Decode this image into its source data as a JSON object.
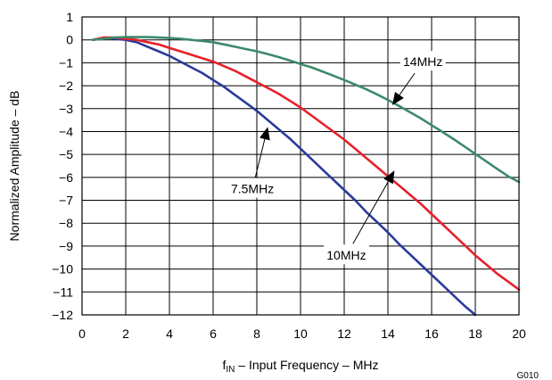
{
  "chart_data": {
    "type": "line",
    "xlabel_main": "f",
    "xlabel_sub": "IN",
    "xlabel_rest": " – Input Frequency – MHz",
    "ylabel": "Normalized Amplitude – dB",
    "xlim": [
      0,
      20
    ],
    "ylim": [
      -12,
      1
    ],
    "x_ticks": [
      0,
      2,
      4,
      6,
      8,
      10,
      12,
      14,
      16,
      18,
      20
    ],
    "y_ticks": [
      1,
      0,
      -1,
      -2,
      -3,
      -4,
      -5,
      -6,
      -7,
      -8,
      -9,
      -10,
      -11,
      -12
    ],
    "grid": true,
    "figure_id": "G010",
    "series": [
      {
        "name": "7.5MHz",
        "color": "#2b3a9c",
        "points": [
          [
            0.5,
            0
          ],
          [
            1,
            0.1
          ],
          [
            1.5,
            0.05
          ],
          [
            2,
            0
          ],
          [
            2.5,
            -0.1
          ],
          [
            3,
            -0.3
          ],
          [
            3.5,
            -0.5
          ],
          [
            4,
            -0.7
          ],
          [
            4.5,
            -0.95
          ],
          [
            5,
            -1.2
          ],
          [
            5.5,
            -1.45
          ],
          [
            6,
            -1.75
          ],
          [
            6.5,
            -2.05
          ],
          [
            7,
            -2.4
          ],
          [
            7.5,
            -2.75
          ],
          [
            8,
            -3.1
          ],
          [
            8.5,
            -3.5
          ],
          [
            9,
            -3.9
          ],
          [
            9.5,
            -4.3
          ],
          [
            10,
            -4.75
          ],
          [
            10.5,
            -5.2
          ],
          [
            11,
            -5.65
          ],
          [
            11.5,
            -6.1
          ],
          [
            12,
            -6.55
          ],
          [
            12.5,
            -7.0
          ],
          [
            13,
            -7.5
          ],
          [
            13.5,
            -7.95
          ],
          [
            14,
            -8.4
          ],
          [
            14.5,
            -8.9
          ],
          [
            15,
            -9.35
          ],
          [
            15.5,
            -9.8
          ],
          [
            16,
            -10.25
          ],
          [
            16.5,
            -10.7
          ],
          [
            17,
            -11.15
          ],
          [
            17.5,
            -11.6
          ],
          [
            18,
            -12.0
          ]
        ]
      },
      {
        "name": "10MHz",
        "color": "#e8202a",
        "points": [
          [
            0.5,
            0
          ],
          [
            1,
            0.1
          ],
          [
            1.5,
            0.1
          ],
          [
            2,
            0.05
          ],
          [
            2.5,
            0
          ],
          [
            3,
            -0.1
          ],
          [
            3.5,
            -0.2
          ],
          [
            4,
            -0.35
          ],
          [
            4.5,
            -0.5
          ],
          [
            5,
            -0.65
          ],
          [
            5.5,
            -0.8
          ],
          [
            6,
            -0.95
          ],
          [
            6.5,
            -1.15
          ],
          [
            7,
            -1.35
          ],
          [
            7.5,
            -1.6
          ],
          [
            8,
            -1.85
          ],
          [
            8.5,
            -2.1
          ],
          [
            9,
            -2.35
          ],
          [
            9.5,
            -2.65
          ],
          [
            10,
            -2.95
          ],
          [
            10.5,
            -3.3
          ],
          [
            11,
            -3.65
          ],
          [
            11.5,
            -4.0
          ],
          [
            12,
            -4.35
          ],
          [
            12.5,
            -4.75
          ],
          [
            13,
            -5.15
          ],
          [
            13.5,
            -5.55
          ],
          [
            14,
            -5.95
          ],
          [
            14.5,
            -6.35
          ],
          [
            15,
            -6.75
          ],
          [
            15.5,
            -7.15
          ],
          [
            16,
            -7.6
          ],
          [
            16.5,
            -8.05
          ],
          [
            17,
            -8.5
          ],
          [
            17.5,
            -8.95
          ],
          [
            18,
            -9.4
          ],
          [
            18.5,
            -9.8
          ],
          [
            19,
            -10.2
          ],
          [
            19.5,
            -10.55
          ],
          [
            20,
            -10.9
          ]
        ]
      },
      {
        "name": "14MHz",
        "color": "#3d8a6a",
        "points": [
          [
            0.5,
            0
          ],
          [
            1,
            0.05
          ],
          [
            1.5,
            0.1
          ],
          [
            2,
            0.12
          ],
          [
            2.5,
            0.12
          ],
          [
            3,
            0.12
          ],
          [
            3.5,
            0.1
          ],
          [
            4,
            0.08
          ],
          [
            4.5,
            0.05
          ],
          [
            5,
            0
          ],
          [
            5.5,
            -0.05
          ],
          [
            6,
            -0.1
          ],
          [
            6.5,
            -0.2
          ],
          [
            7,
            -0.3
          ],
          [
            7.5,
            -0.4
          ],
          [
            8,
            -0.5
          ],
          [
            8.5,
            -0.62
          ],
          [
            9,
            -0.75
          ],
          [
            9.5,
            -0.9
          ],
          [
            10,
            -1.05
          ],
          [
            10.5,
            -1.2
          ],
          [
            11,
            -1.38
          ],
          [
            11.5,
            -1.56
          ],
          [
            12,
            -1.75
          ],
          [
            12.5,
            -1.95
          ],
          [
            13,
            -2.15
          ],
          [
            13.5,
            -2.38
          ],
          [
            14,
            -2.62
          ],
          [
            14.5,
            -2.88
          ],
          [
            15,
            -3.15
          ],
          [
            15.5,
            -3.42
          ],
          [
            16,
            -3.72
          ],
          [
            16.5,
            -4.02
          ],
          [
            17,
            -4.33
          ],
          [
            17.5,
            -4.65
          ],
          [
            18,
            -4.98
          ],
          [
            18.5,
            -5.3
          ],
          [
            19,
            -5.63
          ],
          [
            19.5,
            -5.95
          ],
          [
            20,
            -6.2
          ]
        ]
      }
    ],
    "annotations": [
      {
        "text": "14MHz",
        "x": 15.6,
        "y": -0.95,
        "arrow_to": [
          14.2,
          -2.85
        ]
      },
      {
        "text": "7.5MHz",
        "x": 7.8,
        "y": -6.5,
        "arrow_to": [
          8.5,
          -3.8
        ]
      },
      {
        "text": "10MHz",
        "x": 12.1,
        "y": -9.4,
        "arrow_to": [
          14.3,
          -5.7
        ]
      }
    ]
  }
}
